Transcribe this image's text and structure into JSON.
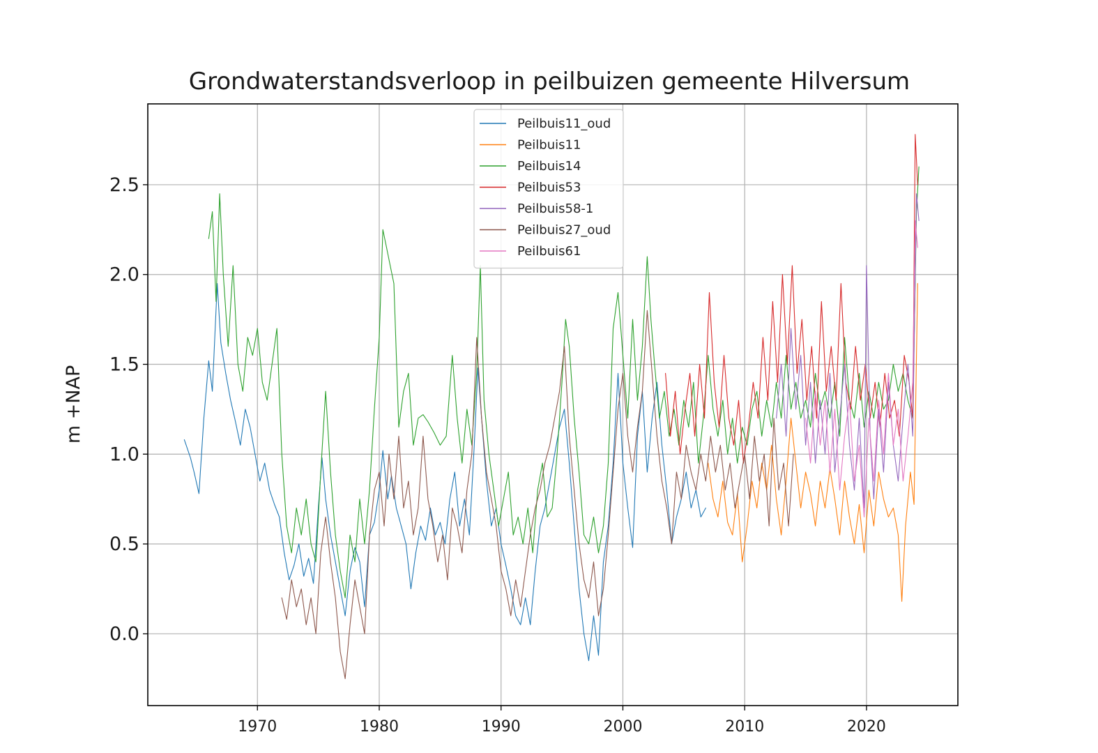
{
  "chart_data": {
    "type": "line",
    "title": "Grondwaterstandsverloop in peilbuizen gemeente Hilversum",
    "xlabel": "",
    "ylabel": "m +NAP",
    "xlim": [
      1961,
      2027.5
    ],
    "ylim": [
      -0.4,
      2.95
    ],
    "xticks": [
      1970,
      1980,
      1990,
      2000,
      2010,
      2020
    ],
    "yticks": [
      0.0,
      0.5,
      1.0,
      1.5,
      2.0,
      2.5
    ],
    "ytick_labels": [
      "0.0",
      "0.5",
      "1.0",
      "1.5",
      "2.0",
      "2.5"
    ],
    "grid": true,
    "legend_position": "upper center",
    "series": [
      {
        "name": "Peilbuis11_oud",
        "color": "#1f77b4",
        "x": [
          1964.0,
          1964.5,
          1964.8,
          1965.2,
          1965.6,
          1966.0,
          1966.3,
          1966.7,
          1967.0,
          1967.4,
          1967.8,
          1968.2,
          1968.6,
          1969.0,
          1969.4,
          1969.8,
          1970.2,
          1970.6,
          1971.0,
          1971.4,
          1971.8,
          1972.2,
          1972.6,
          1973.0,
          1973.4,
          1973.8,
          1974.2,
          1974.6,
          1975.0,
          1975.3,
          1975.6,
          1976.0,
          1976.4,
          1976.8,
          1977.2,
          1977.6,
          1978.0,
          1978.4,
          1978.8,
          1979.2,
          1979.6,
          1980.0,
          1980.3,
          1980.7,
          1981.0,
          1981.4,
          1981.8,
          1982.2,
          1982.6,
          1983.0,
          1983.4,
          1983.8,
          1984.2,
          1984.6,
          1985.0,
          1985.4,
          1985.8,
          1986.2,
          1986.6,
          1987.0,
          1987.4,
          1987.8,
          1988.1,
          1988.4,
          1988.8,
          1989.2,
          1989.6,
          1990.0,
          1990.4,
          1990.8,
          1991.2,
          1991.6,
          1992.0,
          1992.4,
          1992.8,
          1993.2,
          1993.6,
          1994.0,
          1994.4,
          1994.8,
          1995.2,
          1995.6,
          1996.0,
          1996.4,
          1996.8,
          1997.2,
          1997.6,
          1998.0,
          1998.4,
          1998.8,
          1999.2,
          1999.6,
          2000.0,
          2000.4,
          2000.8,
          2001.2,
          2001.6,
          2002.0,
          2002.4,
          2002.8,
          2003.2,
          2003.6,
          2004.0,
          2004.4,
          2004.8,
          2005.2,
          2005.6,
          2006.0,
          2006.4,
          2006.8
        ],
        "y": [
          1.08,
          0.98,
          0.9,
          0.78,
          1.2,
          1.52,
          1.35,
          1.95,
          1.62,
          1.45,
          1.3,
          1.18,
          1.05,
          1.25,
          1.15,
          1.0,
          0.85,
          0.95,
          0.8,
          0.72,
          0.65,
          0.45,
          0.3,
          0.38,
          0.5,
          0.32,
          0.42,
          0.28,
          0.7,
          0.98,
          0.75,
          0.55,
          0.4,
          0.25,
          0.1,
          0.35,
          0.48,
          0.4,
          0.15,
          0.55,
          0.62,
          0.8,
          1.02,
          0.75,
          0.88,
          0.7,
          0.6,
          0.5,
          0.25,
          0.45,
          0.6,
          0.52,
          0.7,
          0.55,
          0.62,
          0.5,
          0.75,
          0.9,
          0.6,
          0.75,
          0.55,
          1.05,
          1.48,
          1.2,
          0.85,
          0.6,
          0.7,
          0.5,
          0.38,
          0.25,
          0.1,
          0.05,
          0.2,
          0.05,
          0.35,
          0.6,
          0.7,
          0.85,
          1.0,
          1.15,
          1.25,
          0.95,
          0.6,
          0.25,
          0.0,
          -0.15,
          0.1,
          -0.12,
          0.4,
          0.6,
          0.95,
          1.45,
          0.95,
          0.7,
          0.48,
          1.1,
          1.35,
          0.9,
          1.2,
          1.4,
          1.05,
          0.8,
          0.5,
          0.65,
          0.75,
          0.9,
          0.7,
          0.8,
          0.65,
          0.7
        ]
      },
      {
        "name": "Peilbuis11",
        "color": "#ff7f0e",
        "x": [
          2007.0,
          2007.4,
          2007.8,
          2008.2,
          2008.6,
          2009.0,
          2009.4,
          2009.8,
          2010.2,
          2010.6,
          2011.0,
          2011.4,
          2011.8,
          2012.2,
          2012.6,
          2013.0,
          2013.4,
          2013.8,
          2014.2,
          2014.6,
          2015.0,
          2015.4,
          2015.8,
          2016.2,
          2016.6,
          2017.0,
          2017.4,
          2017.8,
          2018.2,
          2018.6,
          2019.0,
          2019.4,
          2019.8,
          2020.2,
          2020.6,
          2021.0,
          2021.4,
          2021.8,
          2022.2,
          2022.6,
          2022.9,
          2023.2,
          2023.6,
          2023.9,
          2024.2
        ],
        "y": [
          0.95,
          0.75,
          0.65,
          0.85,
          0.62,
          0.55,
          0.78,
          0.4,
          0.6,
          0.85,
          0.7,
          0.95,
          0.8,
          1.05,
          0.75,
          0.55,
          0.85,
          1.2,
          0.95,
          0.7,
          0.9,
          0.78,
          0.6,
          0.85,
          0.7,
          0.92,
          0.75,
          0.55,
          0.85,
          0.65,
          0.5,
          0.72,
          0.45,
          0.8,
          0.6,
          0.9,
          0.75,
          0.65,
          0.7,
          0.55,
          0.18,
          0.6,
          0.9,
          0.72,
          1.95
        ]
      },
      {
        "name": "Peilbuis14",
        "color": "#2ca02c",
        "x": [
          1966.0,
          1966.3,
          1966.6,
          1966.9,
          1967.2,
          1967.6,
          1968.0,
          1968.4,
          1968.8,
          1969.2,
          1969.6,
          1970.0,
          1970.4,
          1970.8,
          1971.2,
          1971.6,
          1972.0,
          1972.4,
          1972.8,
          1973.2,
          1973.6,
          1974.0,
          1974.4,
          1974.8,
          1975.2,
          1975.6,
          1976.0,
          1976.4,
          1976.8,
          1977.2,
          1977.6,
          1978.0,
          1978.4,
          1978.8,
          1979.2,
          1979.6,
          1980.0,
          1980.3,
          1980.6,
          1980.9,
          1981.2,
          1981.6,
          1982.0,
          1982.4,
          1982.8,
          1983.2,
          1983.6,
          1984.0,
          1984.5,
          1985.0,
          1985.5,
          1986.0,
          1986.4,
          1986.8,
          1987.2,
          1987.6,
          1988.0,
          1988.3,
          1988.6,
          1989.0,
          1989.4,
          1989.8,
          1990.2,
          1990.6,
          1991.0,
          1991.4,
          1991.8,
          1992.2,
          1992.6,
          1993.0,
          1993.4,
          1993.8,
          1994.2,
          1994.6,
          1995.0,
          1995.3,
          1995.6,
          1996.0,
          1996.4,
          1996.8,
          1997.2,
          1997.6,
          1998.0,
          1998.4,
          1998.8,
          1999.2,
          1999.6,
          2000.0,
          2000.4,
          2000.8,
          2001.2,
          2001.6,
          2002.0,
          2002.3,
          2002.6,
          2003.0,
          2003.4,
          2003.8,
          2004.2,
          2004.6,
          2005.0,
          2005.4,
          2005.8,
          2006.2,
          2006.6,
          2007.0,
          2007.4,
          2007.8,
          2008.2,
          2008.6,
          2009.0,
          2009.4,
          2009.8,
          2010.2,
          2010.6,
          2011.0,
          2011.4,
          2011.8,
          2012.2,
          2012.6,
          2013.0,
          2013.4,
          2013.8,
          2014.2,
          2014.6,
          2015.0,
          2015.4,
          2015.8,
          2016.2,
          2016.6,
          2017.0,
          2017.4,
          2017.8,
          2018.2,
          2018.6,
          2019.0,
          2019.4,
          2019.8,
          2020.2,
          2020.6,
          2021.0,
          2021.4,
          2021.8,
          2022.2,
          2022.6,
          2023.0,
          2023.4,
          2023.8,
          2024.1,
          2024.3
        ],
        "y": [
          2.2,
          2.35,
          1.85,
          2.45,
          2.0,
          1.6,
          2.05,
          1.5,
          1.35,
          1.65,
          1.55,
          1.7,
          1.4,
          1.3,
          1.5,
          1.7,
          1.0,
          0.6,
          0.45,
          0.7,
          0.55,
          0.75,
          0.5,
          0.4,
          0.9,
          1.35,
          0.9,
          0.55,
          0.35,
          0.2,
          0.55,
          0.4,
          0.75,
          0.5,
          0.8,
          1.25,
          1.65,
          2.25,
          2.15,
          2.05,
          1.95,
          1.15,
          1.35,
          1.45,
          1.05,
          1.2,
          1.22,
          1.18,
          1.12,
          1.05,
          1.1,
          1.55,
          1.2,
          0.95,
          1.25,
          1.05,
          1.45,
          2.05,
          1.3,
          1.0,
          0.8,
          0.6,
          0.75,
          0.9,
          0.55,
          0.65,
          0.5,
          0.7,
          0.45,
          0.8,
          0.95,
          0.65,
          0.7,
          1.0,
          1.4,
          1.75,
          1.6,
          1.2,
          0.9,
          0.55,
          0.5,
          0.65,
          0.45,
          0.6,
          0.95,
          1.7,
          1.9,
          1.55,
          1.2,
          1.75,
          1.3,
          1.6,
          2.1,
          1.75,
          1.5,
          1.2,
          1.35,
          1.1,
          1.25,
          1.05,
          1.3,
          1.15,
          1.4,
          0.95,
          1.2,
          1.55,
          1.25,
          1.1,
          1.3,
          1.0,
          1.2,
          0.95,
          1.15,
          1.05,
          1.25,
          1.35,
          1.1,
          1.3,
          1.15,
          1.4,
          1.2,
          1.55,
          1.25,
          1.4,
          1.2,
          1.3,
          1.15,
          1.45,
          1.25,
          1.35,
          1.2,
          1.4,
          1.1,
          1.65,
          1.3,
          1.2,
          1.45,
          1.15,
          1.35,
          1.2,
          1.4,
          1.25,
          1.3,
          1.5,
          1.35,
          1.45,
          1.3,
          1.2,
          2.35,
          2.6
        ]
      },
      {
        "name": "Peilbuis53",
        "color": "#d62728",
        "x": [
          2003.5,
          2003.9,
          2004.3,
          2004.7,
          2005.1,
          2005.5,
          2005.9,
          2006.3,
          2006.7,
          2007.1,
          2007.5,
          2007.9,
          2008.3,
          2008.7,
          2009.1,
          2009.5,
          2009.9,
          2010.3,
          2010.7,
          2011.1,
          2011.5,
          2011.9,
          2012.3,
          2012.7,
          2013.1,
          2013.5,
          2013.9,
          2014.3,
          2014.7,
          2015.1,
          2015.5,
          2015.9,
          2016.3,
          2016.7,
          2017.1,
          2017.5,
          2017.9,
          2018.3,
          2018.7,
          2019.1,
          2019.5,
          2019.9,
          2020.3,
          2020.7,
          2021.1,
          2021.5,
          2021.9,
          2022.3,
          2022.7,
          2023.1,
          2023.5,
          2023.8,
          2024.0,
          2024.2
        ],
        "y": [
          1.45,
          1.1,
          1.35,
          1.0,
          1.25,
          1.45,
          1.1,
          1.5,
          1.2,
          1.9,
          1.4,
          1.15,
          1.55,
          1.2,
          1.05,
          1.3,
          0.95,
          1.15,
          1.4,
          1.2,
          1.65,
          1.3,
          1.85,
          1.4,
          2.0,
          1.5,
          2.05,
          1.45,
          1.75,
          1.3,
          1.6,
          1.2,
          1.85,
          1.35,
          1.6,
          1.3,
          1.95,
          1.4,
          1.25,
          1.6,
          1.3,
          1.5,
          1.2,
          1.4,
          1.15,
          1.45,
          1.2,
          1.3,
          1.1,
          1.55,
          1.4,
          1.2,
          2.78,
          2.5
        ]
      },
      {
        "name": "Peilbuis58-1",
        "color": "#9467bd",
        "x": [
          2012.6,
          2013.0,
          2013.4,
          2013.8,
          2014.2,
          2014.6,
          2015.0,
          2015.4,
          2015.8,
          2016.2,
          2016.6,
          2017.0,
          2017.4,
          2017.8,
          2018.2,
          2018.6,
          2019.0,
          2019.4,
          2019.8,
          2020.0,
          2020.3,
          2020.6,
          2021.0,
          2021.4,
          2021.8,
          2022.2,
          2022.6,
          2023.0,
          2023.4,
          2023.8,
          2024.1,
          2024.3
        ],
        "y": [
          1.2,
          1.5,
          1.1,
          1.7,
          1.25,
          1.55,
          1.05,
          1.4,
          0.95,
          1.3,
          1.0,
          1.45,
          0.9,
          1.2,
          1.5,
          1.05,
          0.8,
          1.2,
          0.7,
          2.05,
          1.1,
          0.75,
          1.25,
          0.9,
          1.4,
          1.05,
          0.85,
          1.2,
          1.5,
          1.1,
          2.45,
          2.3
        ]
      },
      {
        "name": "Peilbuis27_oud",
        "color": "#8c564b",
        "x": [
          1972.0,
          1972.4,
          1972.8,
          1973.2,
          1973.6,
          1974.0,
          1974.4,
          1974.8,
          1975.2,
          1975.6,
          1976.0,
          1976.4,
          1976.8,
          1977.2,
          1977.6,
          1978.0,
          1978.4,
          1978.8,
          1979.2,
          1979.6,
          1980.0,
          1980.4,
          1980.8,
          1981.2,
          1981.6,
          1982.0,
          1982.4,
          1982.8,
          1983.2,
          1983.6,
          1984.0,
          1984.4,
          1984.8,
          1985.2,
          1985.6,
          1986.0,
          1986.4,
          1986.8,
          1987.2,
          1987.6,
          1988.0,
          1988.4,
          1988.8,
          1989.2,
          1989.6,
          1990.0,
          1990.4,
          1990.8,
          1991.2,
          1991.6,
          1992.0,
          1992.4,
          1992.8,
          1993.2,
          1993.6,
          1994.0,
          1994.4,
          1994.8,
          1995.2,
          1995.6,
          1996.0,
          1996.4,
          1996.8,
          1997.2,
          1997.6,
          1998.0,
          1998.4,
          1998.8,
          1999.2,
          1999.6,
          2000.0,
          2000.4,
          2000.8,
          2001.2,
          2001.6,
          2002.0,
          2002.4,
          2002.8,
          2003.2,
          2003.6,
          2004.0,
          2004.4,
          2004.8,
          2005.2,
          2005.6,
          2006.0,
          2006.4,
          2006.8,
          2007.2,
          2007.6,
          2008.0,
          2008.4,
          2008.8,
          2009.2,
          2009.6,
          2010.0,
          2010.4,
          2010.8,
          2011.2,
          2011.6,
          2012.0,
          2012.4,
          2012.8,
          2013.2,
          2013.6,
          2014.0
        ],
        "y": [
          0.2,
          0.08,
          0.3,
          0.15,
          0.25,
          0.05,
          0.2,
          0.0,
          0.45,
          0.65,
          0.4,
          0.2,
          -0.1,
          -0.25,
          0.05,
          0.3,
          0.15,
          0.0,
          0.55,
          0.8,
          0.9,
          0.6,
          1.0,
          0.75,
          1.1,
          0.7,
          0.85,
          0.55,
          0.7,
          1.1,
          0.75,
          0.6,
          0.4,
          0.55,
          0.3,
          0.7,
          0.6,
          0.45,
          0.8,
          1.0,
          1.65,
          1.2,
          0.9,
          0.75,
          0.6,
          0.35,
          0.25,
          0.1,
          0.3,
          0.15,
          0.35,
          0.55,
          0.7,
          0.8,
          0.95,
          1.05,
          1.2,
          1.35,
          1.6,
          1.1,
          0.8,
          0.5,
          0.3,
          0.2,
          0.4,
          0.1,
          0.25,
          0.55,
          0.9,
          1.25,
          1.45,
          1.1,
          0.9,
          1.15,
          1.35,
          1.8,
          1.45,
          1.1,
          0.85,
          0.7,
          0.5,
          0.9,
          0.75,
          1.05,
          0.9,
          0.8,
          1.0,
          0.85,
          1.1,
          0.9,
          1.05,
          0.8,
          0.95,
          0.7,
          0.85,
          1.0,
          0.75,
          1.1,
          0.85,
          1.0,
          0.6,
          1.2,
          0.8,
          0.95,
          0.6,
          1.0
        ]
      },
      {
        "name": "Peilbuis61",
        "color": "#e377c2",
        "x": [
          2015.0,
          2015.4,
          2015.8,
          2016.2,
          2016.6,
          2017.0,
          2017.4,
          2017.8,
          2018.2,
          2018.6,
          2019.0,
          2019.4,
          2019.8,
          2020.2,
          2020.6,
          2021.0,
          2021.4,
          2021.8,
          2022.2,
          2022.6,
          2023.0,
          2023.4,
          2023.8,
          2024.0,
          2024.2
        ],
        "y": [
          1.2,
          0.95,
          1.35,
          1.05,
          1.3,
          0.9,
          1.25,
          0.8,
          1.1,
          1.3,
          0.85,
          1.05,
          0.65,
          1.2,
          0.85,
          1.3,
          1.0,
          1.45,
          1.05,
          1.25,
          0.85,
          1.1,
          1.4,
          2.3,
          2.15
        ]
      }
    ]
  }
}
